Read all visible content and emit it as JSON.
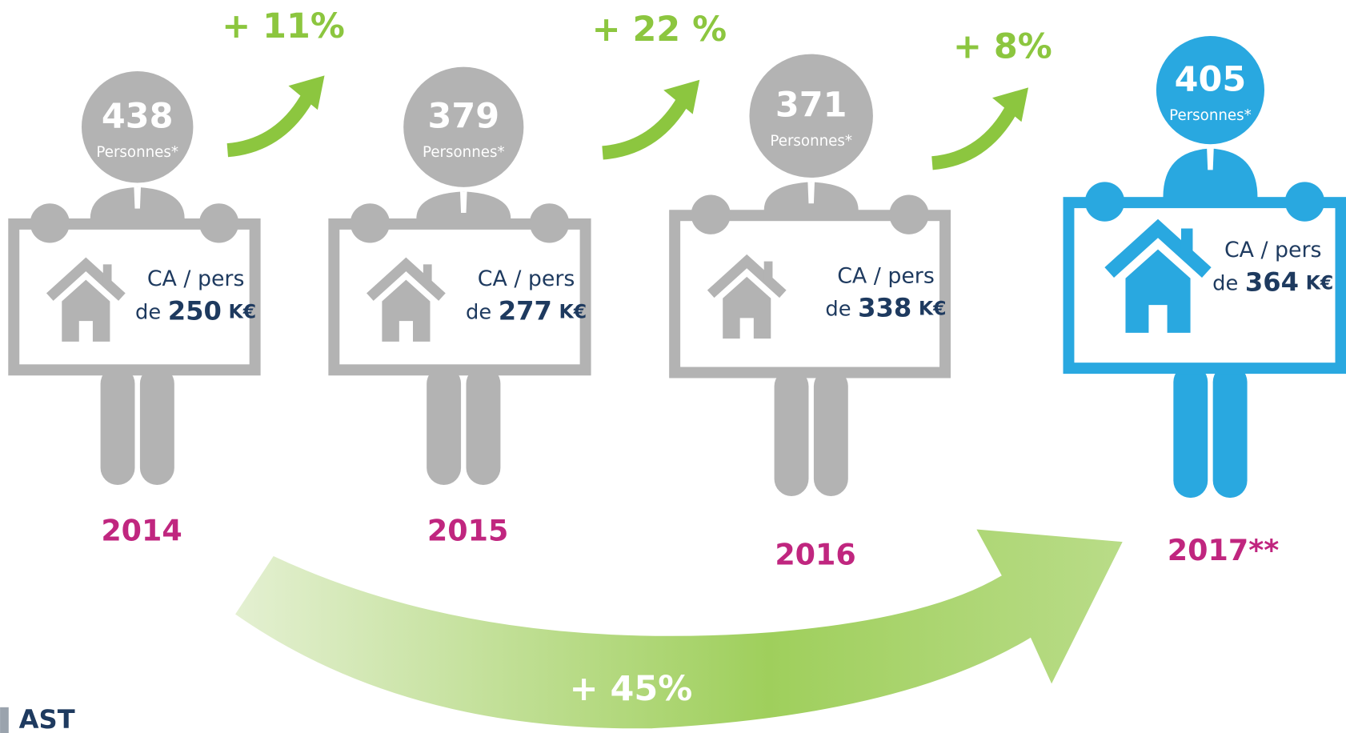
{
  "figures": [
    {
      "count": "438",
      "count_label": "Personnes*",
      "ca_label": "CA / pers",
      "ca_prefix": "de",
      "ca_value": "250",
      "ca_unit": "K€",
      "year": "2014"
    },
    {
      "count": "379",
      "count_label": "Personnes*",
      "ca_label": "CA / pers",
      "ca_prefix": "de",
      "ca_value": "277",
      "ca_unit": "K€",
      "year": "2015"
    },
    {
      "count": "371",
      "count_label": "Personnes*",
      "ca_label": "CA / pers",
      "ca_prefix": "de",
      "ca_value": "338",
      "ca_unit": "K€",
      "year": "2016"
    },
    {
      "count": "405",
      "count_label": "Personnes*",
      "ca_label": "CA / pers",
      "ca_prefix": "de",
      "ca_value": "364",
      "ca_unit": "K€",
      "year": "2017**"
    }
  ],
  "growth": [
    "+ 11%",
    "+ 22 %",
    "+ 8%"
  ],
  "overall_growth": "+ 45%",
  "logo": "AST"
}
